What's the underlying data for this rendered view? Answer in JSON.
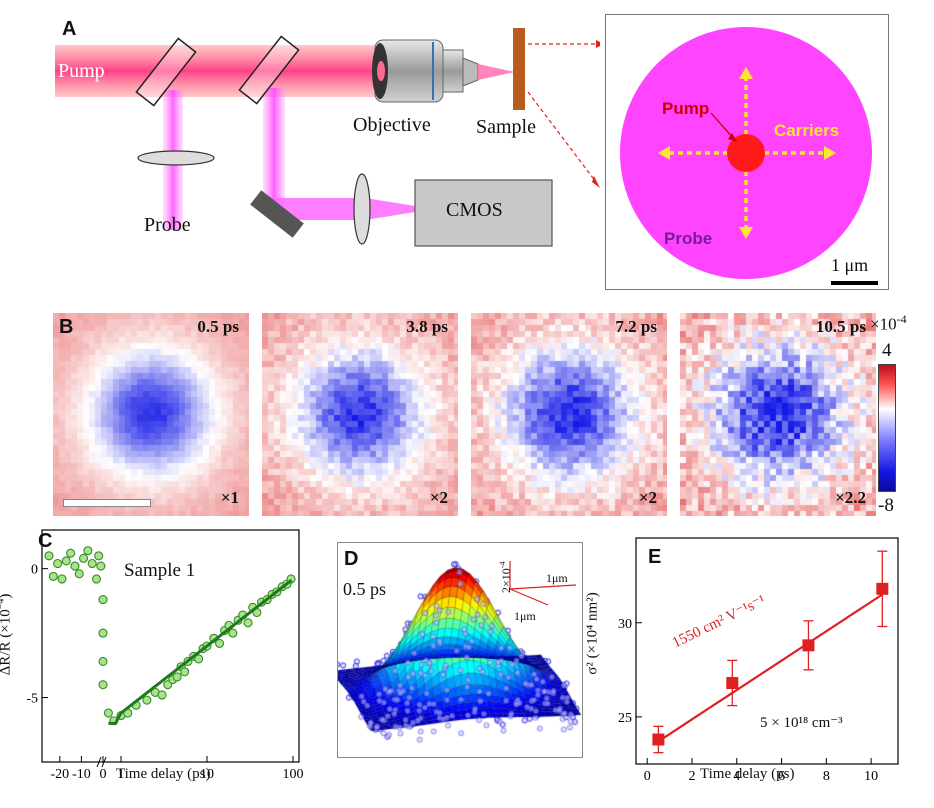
{
  "panel_a": {
    "label": "A",
    "pump_label": "Pump",
    "probe_label": "Probe",
    "objective_label": "Objective",
    "sample_label": "Sample",
    "cmos_label": "CMOS",
    "inset": {
      "pump_label": "Pump",
      "carriers_label": "Carriers",
      "probe_label": "Probe",
      "scalebar_label": "1 μm"
    }
  },
  "panel_b": {
    "label": "B",
    "maps": [
      {
        "time": "0.5 ps",
        "scale": "×1"
      },
      {
        "time": "3.8 ps",
        "scale": "×2"
      },
      {
        "time": "7.2 ps",
        "scale": "×2"
      },
      {
        "time": "10.5 ps",
        "scale": "×2.2"
      }
    ],
    "colorbar": {
      "multiplier": "×10",
      "exponent": "-4",
      "max_label": "4",
      "min_label": "-8",
      "max": 4,
      "min": -8
    }
  },
  "panel_c": {
    "label": "C",
    "title": "Sample 1",
    "ylabel": "ΔR/R (×10",
    "ylabel_exp": "−4",
    "xlabel": "Time delay (ps)",
    "xticks": [
      "-20",
      "-10",
      "0",
      "1",
      "10",
      "100"
    ],
    "yticks": [
      "0",
      "-5"
    ]
  },
  "panel_d": {
    "label": "D",
    "time": "0.5 ps",
    "z_scale": "2×10",
    "z_scale_exp": "-4",
    "x_scale": "1μm",
    "y_scale": "1μm"
  },
  "panel_e": {
    "label": "E",
    "ylabel": "σ² (×10⁴ nm²)",
    "xlabel": "Time delay (ps)",
    "annotation_mobility": "1550 cm² V⁻¹s⁻¹",
    "annotation_density": "5 × 10¹⁸ cm⁻³",
    "xticks": [
      "0",
      "2",
      "4",
      "6",
      "8",
      "10"
    ],
    "yticks": [
      "25",
      "30"
    ]
  },
  "chart_data": [
    {
      "type": "scatter",
      "panel": "C",
      "title": "Sample 1",
      "xlabel": "Time delay (ps)",
      "ylabel": "ΔR/R (×10⁻⁴)",
      "x_scale": "linear for t<1 ps, log for t≥1 ps",
      "xlim": [
        -25,
        100
      ],
      "ylim": [
        -7.5,
        1.5
      ],
      "series": [
        {
          "name": "data",
          "points": [
            [
              -25,
              0.5
            ],
            [
              -23,
              -0.3
            ],
            [
              -21,
              0.2
            ],
            [
              -19,
              -0.4
            ],
            [
              -17,
              0.3
            ],
            [
              -15,
              0.6
            ],
            [
              -13,
              0.1
            ],
            [
              -11,
              -0.2
            ],
            [
              -9,
              0.4
            ],
            [
              -7,
              0.7
            ],
            [
              -5,
              0.2
            ],
            [
              -3,
              -0.4
            ],
            [
              -2,
              0.5
            ],
            [
              -1,
              0.1
            ],
            [
              0,
              -1.2
            ],
            [
              0,
              -2.5
            ],
            [
              0,
              -3.6
            ],
            [
              0,
              -4.5
            ],
            [
              0.3,
              -5.6
            ],
            [
              0.6,
              -5.9
            ],
            [
              1,
              -5.7
            ],
            [
              1.2,
              -5.6
            ],
            [
              1.5,
              -5.3
            ],
            [
              2,
              -5.1
            ],
            [
              2.5,
              -4.8
            ],
            [
              3,
              -4.9
            ],
            [
              3.5,
              -4.5
            ],
            [
              4,
              -4.3
            ],
            [
              4.5,
              -4.2
            ],
            [
              5,
              -3.8
            ],
            [
              5.5,
              -4.0
            ],
            [
              6,
              -3.6
            ],
            [
              7,
              -3.4
            ],
            [
              8,
              -3.5
            ],
            [
              9,
              -3.1
            ],
            [
              10,
              -3.0
            ],
            [
              12,
              -2.7
            ],
            [
              14,
              -2.9
            ],
            [
              16,
              -2.4
            ],
            [
              18,
              -2.2
            ],
            [
              20,
              -2.5
            ],
            [
              23,
              -2.0
            ],
            [
              26,
              -1.8
            ],
            [
              30,
              -2.1
            ],
            [
              34,
              -1.5
            ],
            [
              38,
              -1.7
            ],
            [
              43,
              -1.3
            ],
            [
              50,
              -1.2
            ],
            [
              57,
              -1.0
            ],
            [
              65,
              -0.9
            ],
            [
              75,
              -0.7
            ],
            [
              85,
              -0.6
            ],
            [
              95,
              -0.4
            ]
          ]
        },
        {
          "name": "fit",
          "points": [
            [
              0,
              -6.0
            ],
            [
              1,
              -5.6
            ],
            [
              10,
              -3.0
            ],
            [
              100,
              -0.4
            ]
          ]
        }
      ]
    },
    {
      "type": "surface",
      "panel": "D",
      "time": "0.5 ps",
      "description_peak": 2.0
    },
    {
      "type": "scatter",
      "panel": "E",
      "xlabel": "Time delay (ps)",
      "ylabel": "σ² (×10⁴ nm²)",
      "xlim": [
        -0.5,
        11.2
      ],
      "ylim": [
        22.5,
        34.5
      ],
      "series": [
        {
          "name": "data",
          "x": [
            0.5,
            3.8,
            7.2,
            10.5
          ],
          "y": [
            23.8,
            26.8,
            28.8,
            31.8
          ],
          "err": [
            0.7,
            1.2,
            1.3,
            2.0
          ]
        },
        {
          "name": "fit",
          "x": [
            0.5,
            10.5
          ],
          "y": [
            23.7,
            31.5
          ]
        }
      ]
    }
  ]
}
